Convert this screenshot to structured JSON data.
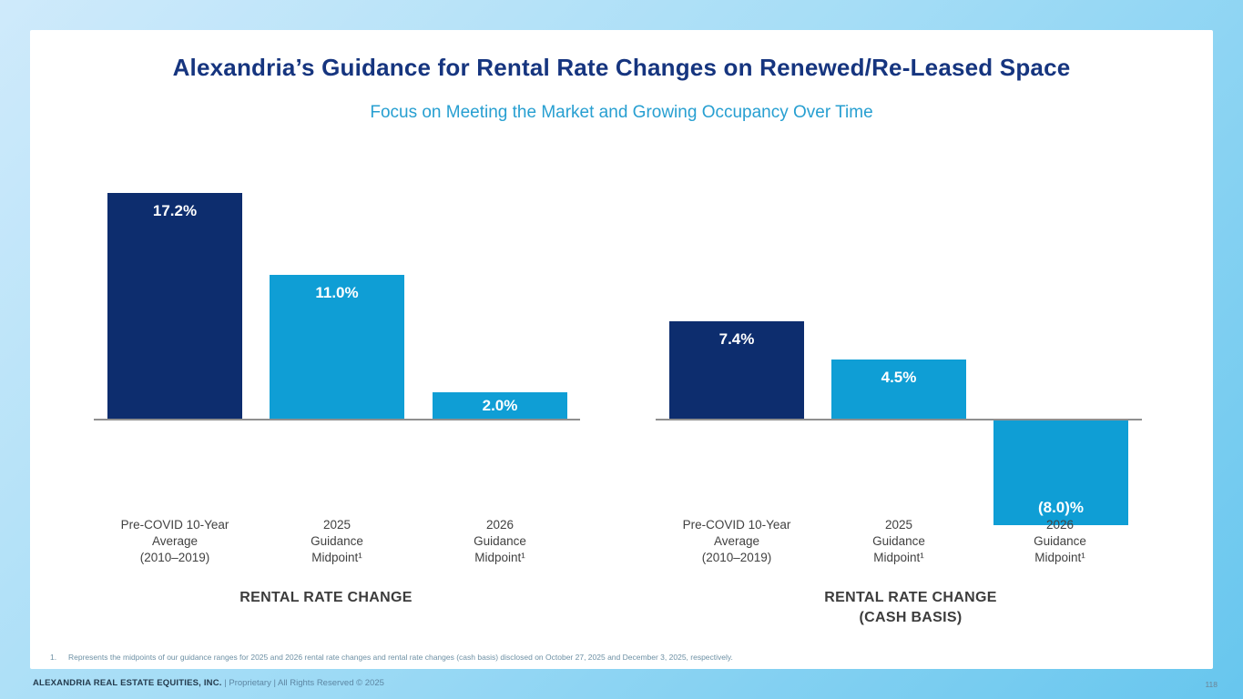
{
  "slide": {
    "title": "Alexandria’s Guidance for Rental Rate Changes on Renewed/Re-Leased Space",
    "subtitle": "Focus on Meeting the Market and Growing Occupancy Over Time",
    "footnote_number": "1.",
    "footnote_text": "Represents the midpoints of our guidance ranges for 2025 and 2026 rental rate changes and rental rate changes (cash basis) disclosed on October 27, 2025 and December 3, 2025, respectively.",
    "footer": {
      "company": "ALEXANDRIA REAL ESTATE EQUITIES, INC.",
      "rights": "| Proprietary | All Rights Reserved © 2025",
      "page_number": "118"
    }
  },
  "colors": {
    "navy_bar": "#0d2d6e",
    "cyan_bar": "#0f9ed5",
    "title_navy": "#16357f",
    "subtitle_cyan": "#279fd1",
    "axis_gray": "#8f8f8f",
    "frame_light_blue": "#cfeafb",
    "frame_dark_blue": "#67c6ee"
  },
  "chart_data": [
    {
      "type": "bar",
      "title": "RENTAL RATE CHANGE",
      "categories": [
        "Pre-COVID 10-Year\nAverage\n(2010–2019)",
        "2025\nGuidance\nMidpoint¹",
        "2026\nGuidance\nMidpoint¹"
      ],
      "values": [
        17.2,
        11.0,
        2.0
      ],
      "value_labels": [
        "17.2%",
        "11.0%",
        "2.0%"
      ],
      "bar_colors": [
        "#0d2d6e",
        "#0f9ed5",
        "#0f9ed5"
      ],
      "xlabel": "",
      "ylabel": "",
      "ylim": [
        -10,
        20
      ],
      "grid": false,
      "legend": "none",
      "baseline": 0
    },
    {
      "type": "bar",
      "title": "RENTAL RATE CHANGE\n(CASH BASIS)",
      "categories": [
        "Pre-COVID 10-Year\nAverage\n(2010–2019)",
        "2025\nGuidance\nMidpoint¹",
        "2026\nGuidance\nMidpoint¹"
      ],
      "values": [
        7.4,
        4.5,
        -8.0
      ],
      "value_labels": [
        "7.4%",
        "4.5%",
        "(8.0)%"
      ],
      "bar_colors": [
        "#0d2d6e",
        "#0f9ed5",
        "#0f9ed5"
      ],
      "xlabel": "",
      "ylabel": "",
      "ylim": [
        -10,
        20
      ],
      "grid": false,
      "legend": "none",
      "baseline": 0
    }
  ]
}
